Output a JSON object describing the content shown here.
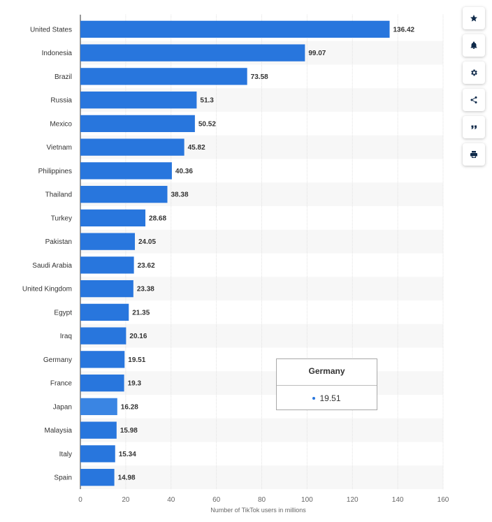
{
  "chart_data": {
    "type": "bar",
    "orientation": "horizontal",
    "categories": [
      "United States",
      "Indonesia",
      "Brazil",
      "Russia",
      "Mexico",
      "Vietnam",
      "Philippines",
      "Thailand",
      "Turkey",
      "Pakistan",
      "Saudi Arabia",
      "United Kingdom",
      "Egypt",
      "Iraq",
      "Germany",
      "France",
      "Japan",
      "Malaysia",
      "Italy",
      "Spain"
    ],
    "values": [
      136.42,
      99.07,
      73.58,
      51.3,
      50.52,
      45.82,
      40.36,
      38.38,
      28.68,
      24.05,
      23.62,
      23.38,
      21.35,
      20.16,
      19.51,
      19.3,
      16.28,
      15.98,
      15.34,
      14.98
    ],
    "value_labels": [
      "136.42",
      "99.07",
      "73.58",
      "51.3",
      "50.52",
      "45.82",
      "40.36",
      "38.38",
      "28.68",
      "24.05",
      "23.62",
      "23.38",
      "21.35",
      "20.16",
      "19.51",
      "19.3",
      "16.28",
      "15.98",
      "15.34",
      "14.98"
    ],
    "xlabel": "Number of TikTok users in millions",
    "ylabel": "",
    "xlim": [
      0,
      160
    ],
    "xticks": [
      0,
      20,
      40,
      60,
      80,
      100,
      120,
      140,
      160
    ],
    "grid": true,
    "bar_color": "#2876dd",
    "highlight_color": "#3a85e3",
    "highlighted_category": "Japan",
    "stripe_color": "#f7f7f7"
  },
  "tooltip": {
    "title": "Germany",
    "value": "19.51",
    "dot_color": "#2876dd"
  },
  "toolbar": {
    "buttons": [
      {
        "name": "favorite-button",
        "icon": "star-icon",
        "glyph": "★"
      },
      {
        "name": "notification-button",
        "icon": "bell-icon",
        "glyph": ""
      },
      {
        "name": "settings-button",
        "icon": "gear-icon",
        "glyph": ""
      },
      {
        "name": "share-button",
        "icon": "share-icon",
        "glyph": ""
      },
      {
        "name": "cite-button",
        "icon": "quote-icon",
        "glyph": "❝"
      },
      {
        "name": "print-button",
        "icon": "printer-icon",
        "glyph": ""
      }
    ]
  }
}
